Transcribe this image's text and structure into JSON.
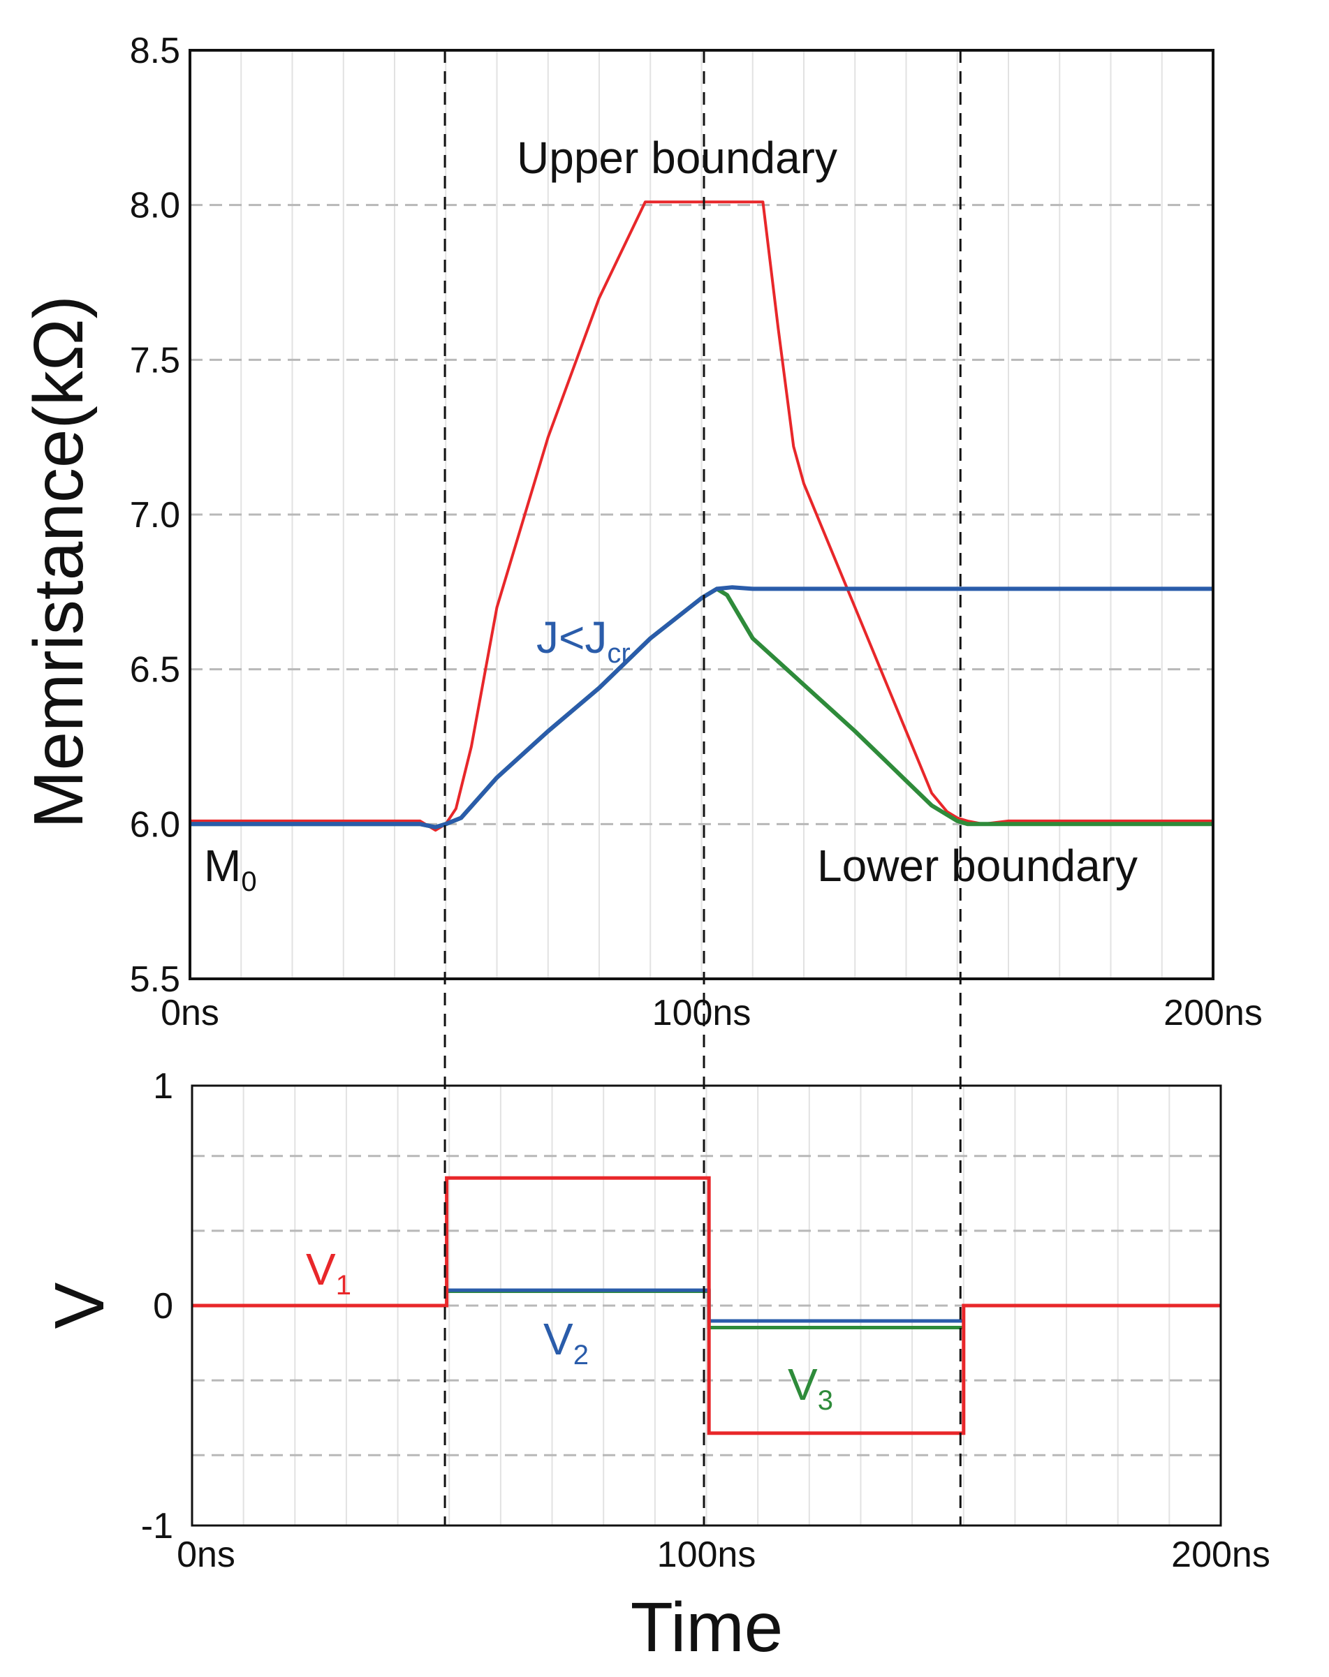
{
  "chart_data": [
    {
      "type": "line",
      "ylabel": "Memristance(kΩ)",
      "xlabel": "",
      "xlim": [
        0,
        200
      ],
      "ylim": [
        5.5,
        8.5
      ],
      "x_tick_labels": [
        "0ns",
        "100ns",
        "200ns"
      ],
      "x_tick_values": [
        0,
        100,
        200
      ],
      "y_ticks": [
        "5.5",
        "6.0",
        "6.5",
        "7.0",
        "7.5",
        "8.0",
        "8.5"
      ],
      "y_tick_values": [
        5.5,
        6.0,
        6.5,
        7.0,
        7.5,
        8.0,
        8.5
      ],
      "vlines": [
        50,
        100,
        150
      ],
      "colors": {
        "red": "#e8272a",
        "blue": "#2a5caa",
        "green": "#2e8b3a"
      },
      "annotations": {
        "upper": "Upper boundary",
        "lower": "Lower boundary",
        "m0": "M",
        "m0_sub": "0",
        "j_main": "J<J",
        "j_sub": "cr"
      },
      "series": [
        {
          "name": "red",
          "color": "#e8272a",
          "x": [
            0,
            42,
            45,
            47,
            48,
            50,
            52,
            55,
            60,
            70,
            80,
            89,
            95,
            100,
            105,
            110,
            112,
            115,
            118,
            120,
            125,
            130,
            135,
            140,
            145,
            148,
            150,
            152,
            155,
            160,
            180,
            200
          ],
          "y": [
            6.01,
            6.01,
            6.01,
            5.99,
            5.98,
            6.0,
            6.05,
            6.25,
            6.7,
            7.25,
            7.7,
            8.01,
            8.01,
            8.01,
            8.01,
            8.01,
            8.01,
            7.6,
            7.22,
            7.1,
            6.9,
            6.7,
            6.5,
            6.3,
            6.1,
            6.04,
            6.02,
            6.01,
            6.0,
            6.01,
            6.01,
            6.01
          ]
        },
        {
          "name": "green",
          "color": "#2e8b3a",
          "x": [
            0,
            45,
            48,
            50,
            53,
            60,
            70,
            80,
            90,
            100,
            103,
            105,
            110,
            120,
            130,
            140,
            145,
            150,
            152,
            160,
            200
          ],
          "y": [
            6.0,
            6.0,
            5.99,
            6.0,
            6.02,
            6.15,
            6.3,
            6.44,
            6.6,
            6.73,
            6.76,
            6.74,
            6.6,
            6.45,
            6.3,
            6.14,
            6.06,
            6.01,
            6.0,
            6.0,
            6.0
          ]
        },
        {
          "name": "blue",
          "color": "#2a5caa",
          "x": [
            0,
            45,
            48,
            50,
            53,
            60,
            70,
            80,
            90,
            100,
            103,
            106,
            110,
            200
          ],
          "y": [
            6.0,
            6.0,
            5.99,
            6.0,
            6.02,
            6.15,
            6.3,
            6.44,
            6.6,
            6.73,
            6.76,
            6.765,
            6.76,
            6.76
          ]
        }
      ]
    },
    {
      "type": "line",
      "ylabel": "V",
      "xlabel": "Time",
      "xlim": [
        0,
        200
      ],
      "ylim": [
        -1,
        1
      ],
      "x_tick_labels": [
        "0ns",
        "100ns",
        "200ns"
      ],
      "x_tick_values": [
        0,
        100,
        200
      ],
      "y_ticks": [
        "-1",
        "0",
        "1"
      ],
      "y_tick_values": [
        -1,
        0,
        1
      ],
      "y_grid": [
        -0.68,
        -0.34,
        0.34,
        0.68
      ],
      "vlines": [
        49,
        100,
        150
      ],
      "annotations": {
        "v1": "V",
        "v1_sub": "1",
        "v2": "V",
        "v2_sub": "2",
        "v3": "V",
        "v3_sub": "3"
      },
      "series": [
        {
          "name": "V1",
          "color": "#e8272a",
          "x": [
            0,
            49.5,
            49.5,
            100.5,
            100.5,
            150,
            150,
            200
          ],
          "y": [
            0,
            0,
            0.58,
            0.58,
            -0.58,
            -0.58,
            0,
            0
          ]
        },
        {
          "name": "V2",
          "color": "#2a5caa",
          "x": [
            49.5,
            100.5,
            100.5,
            150
          ],
          "y": [
            0.07,
            0.07,
            -0.07,
            -0.07
          ]
        },
        {
          "name": "V3",
          "color": "#2e8b3a",
          "x": [
            49.5,
            100.5,
            100.5,
            150
          ],
          "y": [
            0.065,
            0.065,
            -0.1,
            -0.1
          ]
        }
      ]
    }
  ]
}
